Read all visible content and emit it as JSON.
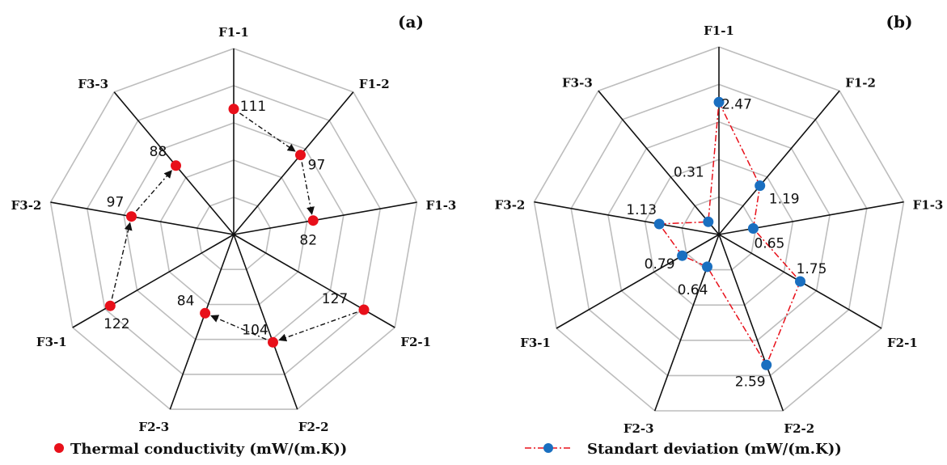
{
  "chart_data": [
    {
      "type": "radar",
      "panel_label": "(a)",
      "categories": [
        "F1-1",
        "F1-2",
        "F1-3",
        "F2-1",
        "F2-2",
        "F2-3",
        "F3-1",
        "F3-2",
        "F3-3"
      ],
      "series": [
        {
          "name": "Thermal conductivity (mW/(m.K))",
          "values": [
            111,
            97,
            82,
            127,
            104,
            84,
            122,
            97,
            88
          ],
          "color": "#e8101a",
          "arrows": true
        }
      ],
      "rlim": [
        30,
        150
      ],
      "grid_rings": 5
    },
    {
      "type": "radar",
      "panel_label": "(b)",
      "categories": [
        "F1-1",
        "F1-2",
        "F1-3",
        "F2-1",
        "F2-2",
        "F2-3",
        "F3-1",
        "F3-2",
        "F3-3"
      ],
      "series": [
        {
          "name": "Standart deviation (mW/(m.K))",
          "values": [
            2.47,
            1.19,
            0.65,
            1.75,
            2.59,
            0.64,
            0.79,
            1.13,
            0.31
          ],
          "color": "#1a6fc0",
          "line_color": "#e8101a"
        }
      ],
      "rlim": [
        0,
        3.5
      ],
      "grid_rings": 5
    }
  ],
  "legend": {
    "a_label": "Thermal conductivity (mW/(m.K))",
    "b_label": "Standart deviation (mW/(m.K))"
  }
}
